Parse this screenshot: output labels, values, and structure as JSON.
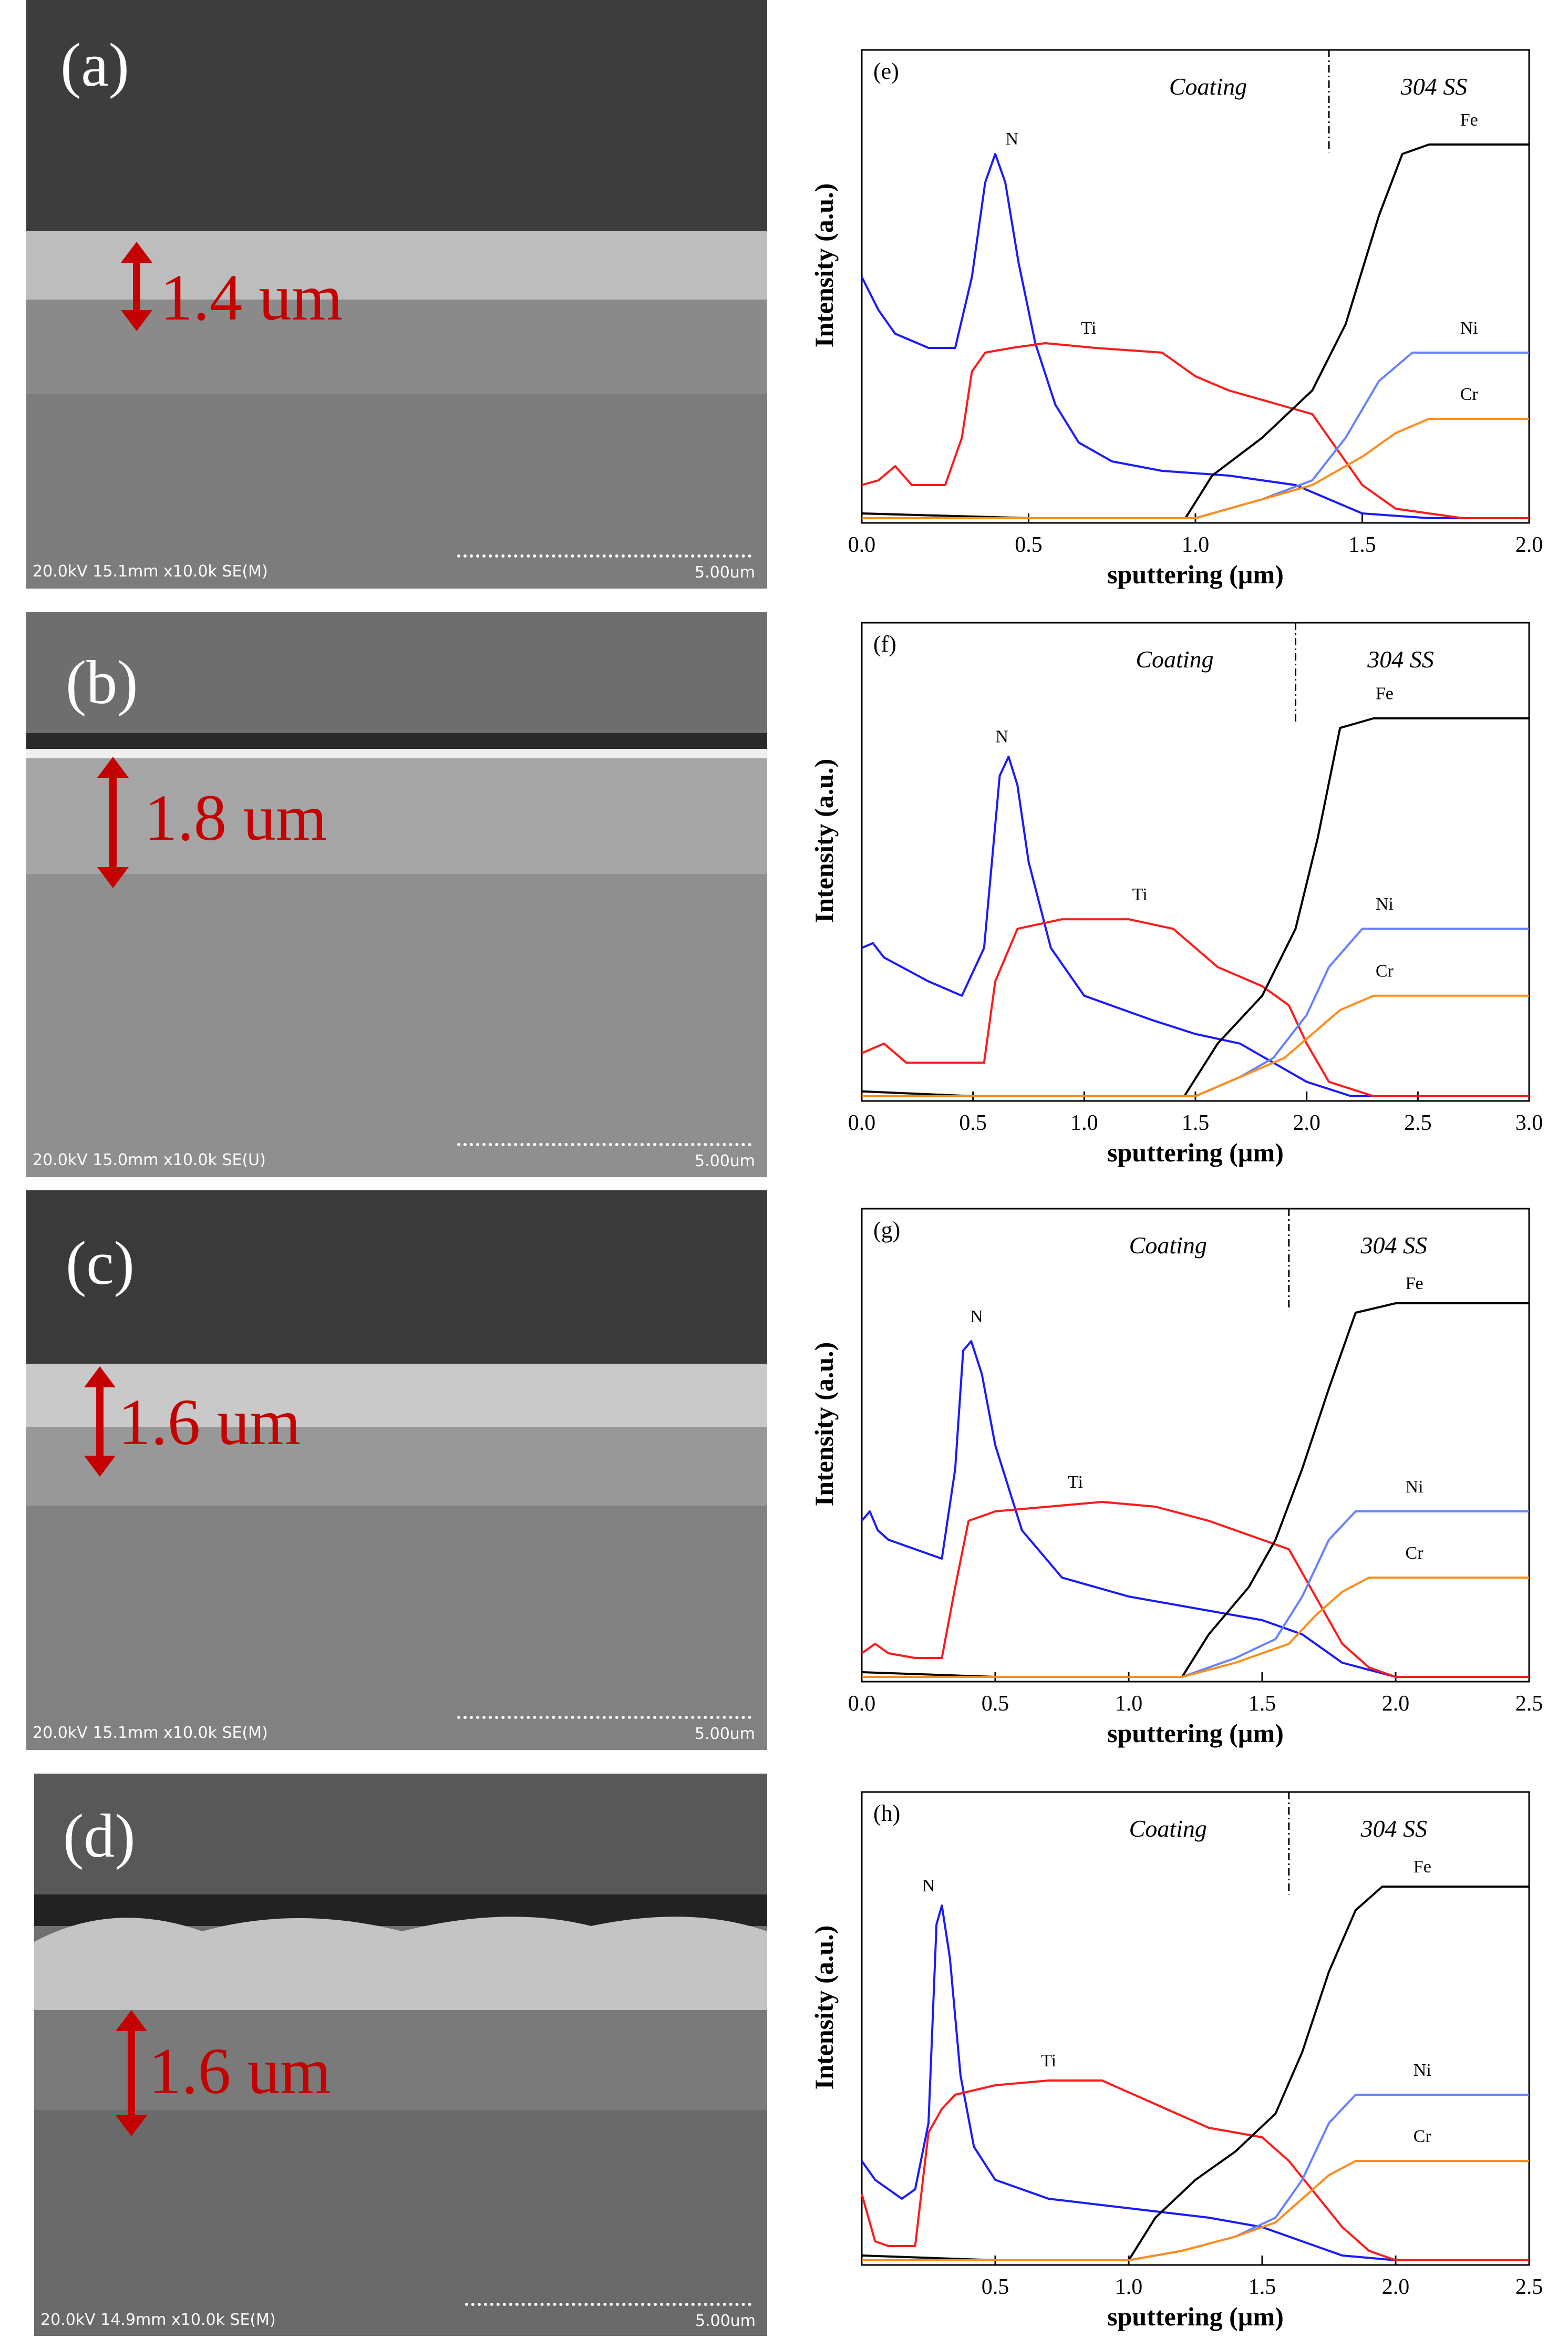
{
  "sem_panels": [
    {
      "label": "(a)",
      "thickness": "1.4 um",
      "info": "20.0kV 15.1mm x10.0k SE(M)",
      "scale": "5.00um"
    },
    {
      "label": "(b)",
      "thickness": "1.8 um",
      "info": "20.0kV 15.0mm x10.0k SE(U)",
      "scale": "5.00um"
    },
    {
      "label": "(c)",
      "thickness": "1.6 um",
      "info": "20.0kV 15.1mm x10.0k SE(M)",
      "scale": "5.00um"
    },
    {
      "label": "(d)",
      "thickness": "1.6 um",
      "info": "20.0kV 14.9mm x10.0k SE(M)",
      "scale": "5.00um"
    }
  ],
  "colors": {
    "N": "#1a1aff",
    "Ti": "#ff1a1a",
    "Fe": "#000000",
    "Ni": "#6680ff",
    "Cr": "#ff8c1a",
    "arrow": "#c40000"
  },
  "chart_data": [
    {
      "type": "line",
      "panel": "(e)",
      "xlabel": "sputtering (µm)",
      "ylabel": "Intensity (a.u.)",
      "xlim": [
        0,
        2.0
      ],
      "ylim": [
        0,
        100
      ],
      "xticks": [
        "0.0",
        "0.5",
        "1.0",
        "1.5",
        "2.0"
      ],
      "xtick_values": [
        0,
        0.5,
        1.0,
        1.5,
        2.0
      ],
      "region_left": "Coating",
      "region_right": "304 SS",
      "boundary": 1.4,
      "series": [
        {
          "name": "N",
          "x": [
            0,
            0.05,
            0.1,
            0.2,
            0.28,
            0.33,
            0.37,
            0.4,
            0.43,
            0.47,
            0.52,
            0.58,
            0.65,
            0.75,
            0.9,
            1.1,
            1.3,
            1.4,
            1.5,
            1.7,
            2.0
          ],
          "y": [
            52,
            45,
            40,
            37,
            37,
            52,
            72,
            78,
            72,
            55,
            38,
            25,
            17,
            13,
            11,
            10,
            8,
            5,
            2,
            1,
            1
          ]
        },
        {
          "name": "Ti",
          "x": [
            0,
            0.05,
            0.1,
            0.15,
            0.25,
            0.3,
            0.33,
            0.37,
            0.45,
            0.55,
            0.7,
            0.9,
            1.0,
            1.1,
            1.25,
            1.35,
            1.42,
            1.5,
            1.6,
            1.8,
            2.0
          ],
          "y": [
            8,
            9,
            12,
            8,
            8,
            18,
            32,
            36,
            37,
            38,
            37,
            36,
            31,
            28,
            25,
            23,
            16,
            8,
            3,
            1,
            1
          ]
        },
        {
          "name": "Fe",
          "x": [
            0,
            0.5,
            0.97,
            1.05,
            1.2,
            1.35,
            1.45,
            1.55,
            1.62,
            1.7,
            1.8,
            2.0
          ],
          "y": [
            2,
            1,
            1,
            10,
            18,
            28,
            42,
            65,
            78,
            80,
            80,
            80
          ]
        },
        {
          "name": "Ni",
          "x": [
            0,
            0.5,
            1.0,
            1.2,
            1.35,
            1.45,
            1.55,
            1.65,
            1.75,
            2.0
          ],
          "y": [
            1,
            1,
            1,
            5,
            9,
            18,
            30,
            36,
            36,
            36
          ]
        },
        {
          "name": "Cr",
          "x": [
            0,
            0.5,
            1.0,
            1.2,
            1.35,
            1.5,
            1.6,
            1.7,
            1.8,
            2.0
          ],
          "y": [
            1,
            1,
            1,
            5,
            8,
            14,
            19,
            22,
            22,
            22
          ]
        }
      ],
      "element_labels": [
        {
          "name": "N",
          "x": 0.45,
          "y": 80
        },
        {
          "name": "Ti",
          "x": 0.68,
          "y": 40
        },
        {
          "name": "Fe",
          "x": 1.82,
          "y": 84
        },
        {
          "name": "Ni",
          "x": 1.82,
          "y": 40
        },
        {
          "name": "Cr",
          "x": 1.82,
          "y": 26
        }
      ]
    },
    {
      "type": "line",
      "panel": "(f)",
      "xlabel": "sputtering (µm)",
      "ylabel": "Intensity (a.u.)",
      "xlim": [
        0,
        3.0
      ],
      "ylim": [
        0,
        100
      ],
      "xticks": [
        "0.0",
        "0.5",
        "1.0",
        "1.5",
        "2.0",
        "2.5",
        "3.0"
      ],
      "xtick_values": [
        0,
        0.5,
        1.0,
        1.5,
        2.0,
        2.5,
        3.0
      ],
      "region_left": "Coating",
      "region_right": "304 SS",
      "boundary": 1.95,
      "series": [
        {
          "name": "N",
          "x": [
            0,
            0.05,
            0.1,
            0.3,
            0.45,
            0.55,
            0.62,
            0.66,
            0.7,
            0.75,
            0.85,
            1.0,
            1.3,
            1.5,
            1.7,
            1.85,
            2.0,
            2.2,
            3.0
          ],
          "y": [
            32,
            33,
            30,
            25,
            22,
            32,
            68,
            72,
            66,
            50,
            32,
            22,
            17,
            14,
            12,
            8,
            4,
            1,
            1
          ]
        },
        {
          "name": "Ti",
          "x": [
            0,
            0.1,
            0.2,
            0.4,
            0.55,
            0.6,
            0.7,
            0.9,
            1.2,
            1.4,
            1.6,
            1.8,
            1.92,
            2.0,
            2.1,
            2.3,
            3.0
          ],
          "y": [
            10,
            12,
            8,
            8,
            8,
            25,
            36,
            38,
            38,
            36,
            28,
            24,
            20,
            12,
            4,
            1,
            1
          ]
        },
        {
          "name": "Fe",
          "x": [
            0,
            0.5,
            1.0,
            1.45,
            1.6,
            1.8,
            1.95,
            2.05,
            2.15,
            2.3,
            2.6,
            3.0
          ],
          "y": [
            2,
            1,
            1,
            1,
            12,
            22,
            36,
            55,
            78,
            80,
            80,
            80
          ]
        },
        {
          "name": "Ni",
          "x": [
            0,
            1.0,
            1.5,
            1.7,
            1.85,
            2.0,
            2.1,
            2.25,
            2.4,
            3.0
          ],
          "y": [
            1,
            1,
            1,
            5,
            9,
            18,
            28,
            36,
            36,
            36
          ]
        },
        {
          "name": "Cr",
          "x": [
            0,
            1.0,
            1.5,
            1.7,
            1.9,
            2.05,
            2.15,
            2.3,
            2.5,
            3.0
          ],
          "y": [
            1,
            1,
            1,
            5,
            9,
            15,
            19,
            22,
            22,
            22
          ]
        }
      ],
      "element_labels": [
        {
          "name": "N",
          "x": 0.63,
          "y": 75
        },
        {
          "name": "Ti",
          "x": 1.25,
          "y": 42
        },
        {
          "name": "Fe",
          "x": 2.35,
          "y": 84
        },
        {
          "name": "Ni",
          "x": 2.35,
          "y": 40
        },
        {
          "name": "Cr",
          "x": 2.35,
          "y": 26
        }
      ]
    },
    {
      "type": "line",
      "panel": "(g)",
      "xlabel": "sputtering (µm)",
      "ylabel": "Intensity (a.u.)",
      "xlim": [
        0,
        2.5
      ],
      "ylim": [
        0,
        100
      ],
      "xticks": [
        "0.0",
        "0.5",
        "1.0",
        "1.5",
        "2.0",
        "2.5"
      ],
      "xtick_values": [
        0,
        0.5,
        1.0,
        1.5,
        2.0,
        2.5
      ],
      "region_left": "Coating",
      "region_right": "304 SS",
      "boundary": 1.6,
      "series": [
        {
          "name": "N",
          "x": [
            0,
            0.03,
            0.06,
            0.1,
            0.2,
            0.3,
            0.35,
            0.38,
            0.41,
            0.45,
            0.5,
            0.6,
            0.75,
            1.0,
            1.3,
            1.5,
            1.65,
            1.8,
            2.0,
            2.5
          ],
          "y": [
            34,
            36,
            32,
            30,
            28,
            26,
            45,
            70,
            72,
            65,
            50,
            32,
            22,
            18,
            15,
            13,
            10,
            4,
            1,
            1
          ]
        },
        {
          "name": "Ti",
          "x": [
            0,
            0.05,
            0.1,
            0.2,
            0.3,
            0.35,
            0.4,
            0.5,
            0.7,
            0.9,
            1.1,
            1.3,
            1.5,
            1.6,
            1.7,
            1.8,
            1.9,
            2.0,
            2.5
          ],
          "y": [
            6,
            8,
            6,
            5,
            5,
            20,
            34,
            36,
            37,
            38,
            37,
            34,
            30,
            28,
            18,
            8,
            3,
            1,
            1
          ]
        },
        {
          "name": "Fe",
          "x": [
            0,
            0.5,
            1.0,
            1.2,
            1.3,
            1.45,
            1.55,
            1.65,
            1.75,
            1.85,
            2.0,
            2.5
          ],
          "y": [
            2,
            1,
            1,
            1,
            10,
            20,
            30,
            45,
            62,
            78,
            80,
            80
          ]
        },
        {
          "name": "Ni",
          "x": [
            0,
            1.0,
            1.2,
            1.4,
            1.55,
            1.65,
            1.75,
            1.85,
            2.0,
            2.5
          ],
          "y": [
            1,
            1,
            1,
            5,
            9,
            18,
            30,
            36,
            36,
            36
          ]
        },
        {
          "name": "Cr",
          "x": [
            0,
            1.0,
            1.2,
            1.4,
            1.6,
            1.7,
            1.8,
            1.9,
            2.0,
            2.5
          ],
          "y": [
            1,
            1,
            1,
            4,
            8,
            14,
            19,
            22,
            22,
            22
          ]
        }
      ],
      "element_labels": [
        {
          "name": "N",
          "x": 0.43,
          "y": 76
        },
        {
          "name": "Ti",
          "x": 0.8,
          "y": 41
        },
        {
          "name": "Fe",
          "x": 2.07,
          "y": 83
        },
        {
          "name": "Ni",
          "x": 2.07,
          "y": 40
        },
        {
          "name": "Cr",
          "x": 2.07,
          "y": 26
        }
      ]
    },
    {
      "type": "line",
      "panel": "(h)",
      "xlabel": "sputtering (µm)",
      "ylabel": "Intensity (a.u.)",
      "xlim": [
        0,
        2.5
      ],
      "ylim": [
        0,
        100
      ],
      "xticks": [
        "0.5",
        "1.0",
        "1.5",
        "2.0",
        "2.5"
      ],
      "xtick_values": [
        0.5,
        1.0,
        1.5,
        2.0,
        2.5
      ],
      "region_left": "Coating",
      "region_right": "304 SS",
      "boundary": 1.6,
      "series": [
        {
          "name": "N",
          "x": [
            0,
            0.05,
            0.1,
            0.15,
            0.2,
            0.25,
            0.28,
            0.3,
            0.33,
            0.37,
            0.42,
            0.5,
            0.7,
            1.0,
            1.3,
            1.5,
            1.65,
            1.8,
            2.0,
            2.5
          ],
          "y": [
            22,
            18,
            16,
            14,
            16,
            30,
            72,
            76,
            65,
            40,
            25,
            18,
            14,
            12,
            10,
            8,
            5,
            2,
            1,
            1
          ]
        },
        {
          "name": "Ti",
          "x": [
            0,
            0.05,
            0.1,
            0.15,
            0.2,
            0.25,
            0.3,
            0.35,
            0.5,
            0.7,
            0.9,
            1.1,
            1.3,
            1.5,
            1.6,
            1.7,
            1.8,
            1.9,
            2.0,
            2.5
          ],
          "y": [
            15,
            5,
            4,
            4,
            4,
            28,
            33,
            36,
            38,
            39,
            39,
            34,
            29,
            27,
            22,
            15,
            8,
            3,
            1,
            1
          ]
        },
        {
          "name": "Fe",
          "x": [
            0,
            0.5,
            1.0,
            1.1,
            1.25,
            1.4,
            1.55,
            1.65,
            1.75,
            1.85,
            1.95,
            2.1,
            2.5
          ],
          "y": [
            2,
            1,
            1,
            10,
            18,
            24,
            32,
            45,
            62,
            75,
            80,
            80,
            80
          ]
        },
        {
          "name": "Ni",
          "x": [
            0,
            0.5,
            1.0,
            1.2,
            1.4,
            1.55,
            1.65,
            1.75,
            1.85,
            2.0,
            2.5
          ],
          "y": [
            1,
            1,
            1,
            3,
            6,
            10,
            18,
            30,
            36,
            36,
            36
          ]
        },
        {
          "name": "Cr",
          "x": [
            0,
            0.5,
            1.0,
            1.2,
            1.4,
            1.55,
            1.65,
            1.75,
            1.85,
            2.0,
            2.5
          ],
          "y": [
            1,
            1,
            1,
            3,
            6,
            9,
            14,
            19,
            22,
            22,
            22
          ]
        }
      ],
      "element_labels": [
        {
          "name": "N",
          "x": 0.25,
          "y": 79
        },
        {
          "name": "Ti",
          "x": 0.7,
          "y": 42
        },
        {
          "name": "Fe",
          "x": 2.1,
          "y": 83
        },
        {
          "name": "Ni",
          "x": 2.1,
          "y": 40
        },
        {
          "name": "Cr",
          "x": 2.1,
          "y": 26
        }
      ]
    }
  ]
}
